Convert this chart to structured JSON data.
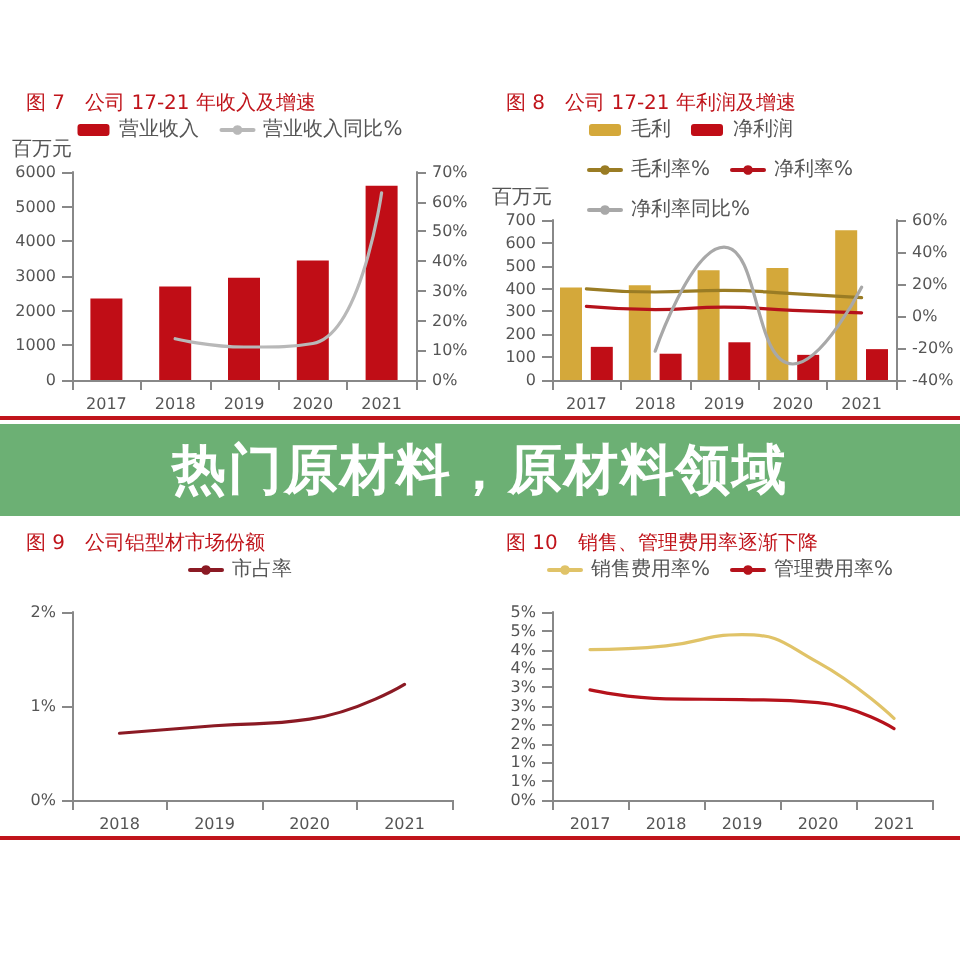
{
  "chart_data": [
    {
      "type": "bar",
      "title": "图 7　公司 17-21 年收入及增速",
      "ylabel": "百万元",
      "categories": [
        "2017",
        "2018",
        "2019",
        "2020",
        "2021"
      ],
      "ylim": [
        0,
        6000
      ],
      "yticks": [
        0,
        1000,
        2000,
        3000,
        4000,
        5000,
        6000
      ],
      "y2lim": [
        0,
        70
      ],
      "y2ticks": [
        {
          "value": 0,
          "label": "0%"
        },
        {
          "value": 10,
          "label": "10%"
        },
        {
          "value": 20,
          "label": "20%"
        },
        {
          "value": 30,
          "label": "30%"
        },
        {
          "value": 40,
          "label": "40%"
        },
        {
          "value": 50,
          "label": "50%"
        },
        {
          "value": 60,
          "label": "60%"
        },
        {
          "value": 70,
          "label": "70%"
        }
      ],
      "legend": "top",
      "grid": false,
      "marker": "none",
      "line_style": "solid",
      "series": [
        {
          "name": "营业收入",
          "color": "#c00d16",
          "values": [
            2350,
            2700,
            2950,
            3450,
            5600
          ]
        },
        {
          "name": "营业收入同比%",
          "type": "line",
          "axis": "y2",
          "color": "#b8b8b8",
          "values": [
            null,
            13.9,
            11.1,
            12.3,
            63
          ]
        }
      ]
    },
    {
      "type": "bar",
      "title": "图 8　公司 17-21 年利润及增速",
      "ylabel": "百万元",
      "categories": [
        "2017",
        "2018",
        "2019",
        "2020",
        "2021"
      ],
      "ylim": [
        0,
        700
      ],
      "yticks": [
        0,
        100,
        200,
        300,
        400,
        500,
        600,
        700
      ],
      "y2lim": [
        -40,
        60
      ],
      "y2ticks": [
        {
          "value": -40,
          "label": "-40%"
        },
        {
          "value": -20,
          "label": "-20%"
        },
        {
          "value": 0,
          "label": "0%"
        },
        {
          "value": 20,
          "label": "20%"
        },
        {
          "value": 40,
          "label": "40%"
        },
        {
          "value": 60,
          "label": "60%"
        }
      ],
      "legend": "top",
      "grid": false,
      "marker": "none",
      "line_style": "solid",
      "series": [
        {
          "name": "毛利",
          "color": "#d4a83a",
          "values": [
            405,
            415,
            480,
            490,
            655
          ]
        },
        {
          "name": "净利润",
          "color": "#c00d16",
          "values": [
            145,
            115,
            165,
            110,
            135
          ]
        },
        {
          "name": "毛利率%",
          "type": "line",
          "axis": "y2",
          "color": "#9a7c24",
          "values": [
            17,
            15,
            16,
            14,
            11.5
          ]
        },
        {
          "name": "净利率%",
          "type": "line",
          "axis": "y2",
          "color": "#b5121b",
          "values": [
            6,
            4,
            5.5,
            3.5,
            2
          ]
        },
        {
          "name": "净利率同比%",
          "type": "line",
          "axis": "y2",
          "color": "#a8a8a8",
          "values": [
            null,
            -22,
            43,
            -30,
            18
          ]
        }
      ]
    },
    {
      "type": "other",
      "title": "热门原材料，原材料领域"
    },
    {
      "type": "line",
      "title": "图 9　公司铝型材市场份额",
      "categories": [
        "2018",
        "2019",
        "2020",
        "2021"
      ],
      "ylim": [
        0,
        2
      ],
      "yticks": [
        {
          "value": 0,
          "label": "0%"
        },
        {
          "value": 1,
          "label": "1%"
        },
        {
          "value": 2,
          "label": "2%"
        }
      ],
      "legend": "top",
      "grid": false,
      "marker": "none",
      "line_style": "solid",
      "series": [
        {
          "name": "市占率",
          "color": "#8b1a24",
          "values": [
            0.71,
            0.79,
            0.86,
            1.23
          ]
        }
      ]
    },
    {
      "type": "line",
      "title": "图 10　销售、管理费用率逐渐下降",
      "categories": [
        "2017",
        "2018",
        "2019",
        "2020",
        "2021"
      ],
      "ylim": [
        0,
        5
      ],
      "yticks": [
        {
          "value": 0,
          "label": "0%"
        },
        {
          "value": 0.5,
          "label": "1%"
        },
        {
          "value": 1,
          "label": "1%"
        },
        {
          "value": 1.5,
          "label": "2%"
        },
        {
          "value": 2,
          "label": "2%"
        },
        {
          "value": 2.5,
          "label": "3%"
        },
        {
          "value": 3,
          "label": "3%"
        },
        {
          "value": 3.5,
          "label": "4%"
        },
        {
          "value": 4,
          "label": "4%"
        },
        {
          "value": 4.5,
          "label": "5%"
        },
        {
          "value": 5,
          "label": "5%"
        }
      ],
      "legend": "top",
      "grid": false,
      "marker": "none",
      "line_style": "solid",
      "series": [
        {
          "name": "销售费用率%",
          "color": "#e0c368",
          "values": [
            4.0,
            4.1,
            4.4,
            3.66,
            2.17
          ]
        },
        {
          "name": "管理费用率%",
          "color": "#b5121b",
          "values": [
            2.93,
            2.69,
            2.67,
            2.59,
            1.9
          ]
        }
      ]
    }
  ]
}
